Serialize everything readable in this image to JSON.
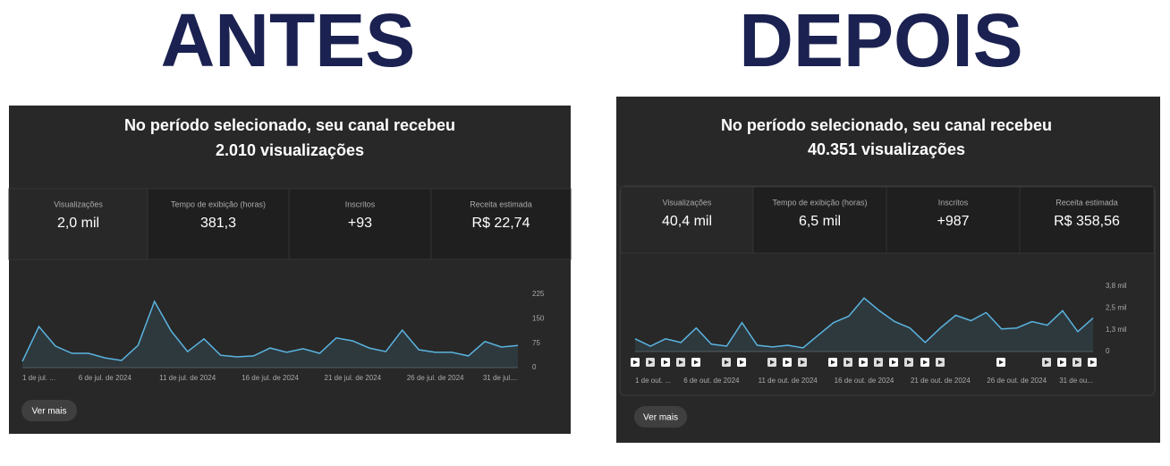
{
  "headings": [
    "ANTES",
    "DEPOIS"
  ],
  "panels": [
    {
      "title": [
        "No período selecionado, seu canal recebeu",
        "2.010 visualizações"
      ],
      "metrics": [
        {
          "label": "Visualizações",
          "value": "2,0 mil"
        },
        {
          "label": "Tempo de exibição (horas)",
          "value": "381,3"
        },
        {
          "label": "Inscritos",
          "value": "+93"
        },
        {
          "label": "Receita estimada",
          "value": "R$ 22,74"
        }
      ],
      "button": "Ver mais"
    },
    {
      "title": [
        "No período selecionado, seu canal recebeu",
        "40.351 visualizações"
      ],
      "metrics": [
        {
          "label": "Visualizações",
          "value": "40,4 mil"
        },
        {
          "label": "Tempo de exibição (horas)",
          "value": "6,5 mil"
        },
        {
          "label": "Inscritos",
          "value": "+987"
        },
        {
          "label": "Receita estimada",
          "value": "R$ 358,56"
        }
      ],
      "button": "Ver mais"
    }
  ],
  "chart_data": [
    {
      "type": "line",
      "color": "#5ab4e0",
      "categories": [
        "1 de jul. ...",
        null,
        null,
        null,
        null,
        "6 de jul. de 2024",
        null,
        null,
        null,
        null,
        "11 de jul. de 2024",
        null,
        null,
        null,
        null,
        "16 de jul. de 2024",
        null,
        null,
        null,
        null,
        "21 de jul. de 2024",
        null,
        null,
        null,
        null,
        "26 de jul. de 2024",
        null,
        null,
        null,
        null,
        "31 de jul...."
      ],
      "values": [
        19,
        126,
        66,
        44,
        44,
        30,
        22,
        68,
        203,
        113,
        49,
        88,
        38,
        33,
        36,
        60,
        47,
        58,
        44,
        91,
        82,
        60,
        49,
        115,
        55,
        47,
        47,
        36,
        80,
        63,
        68
      ],
      "ylim": [
        0,
        225
      ],
      "yticks": [
        0,
        75,
        150,
        225
      ]
    },
    {
      "type": "line",
      "color": "#5ab4e0",
      "categories": [
        "1 de out. ...",
        null,
        null,
        null,
        null,
        "6 de out. de 2024",
        null,
        null,
        null,
        null,
        "11 de out. de 2024",
        null,
        null,
        null,
        null,
        "16 de out. de 2024",
        null,
        null,
        null,
        null,
        "21 de out. de 2024",
        null,
        null,
        null,
        null,
        "26 de out. de 2024",
        null,
        null,
        null,
        null,
        "31 de ou..."
      ],
      "values": [
        730,
        310,
        730,
        520,
        1350,
        420,
        310,
        1660,
        360,
        260,
        360,
        210,
        940,
        1660,
        2030,
        3070,
        2340,
        1720,
        1350,
        520,
        1350,
        2080,
        1770,
        2240,
        1300,
        1350,
        1720,
        1510,
        2340,
        1140,
        1920
      ],
      "ylim": [
        0,
        3750
      ],
      "yticks": [
        0,
        {
          "value": 1250,
          "label": "1,3 mil"
        },
        {
          "value": 2500,
          "label": "2,5 mil"
        },
        {
          "value": 3750,
          "label": "3,8 mil"
        }
      ]
    }
  ]
}
